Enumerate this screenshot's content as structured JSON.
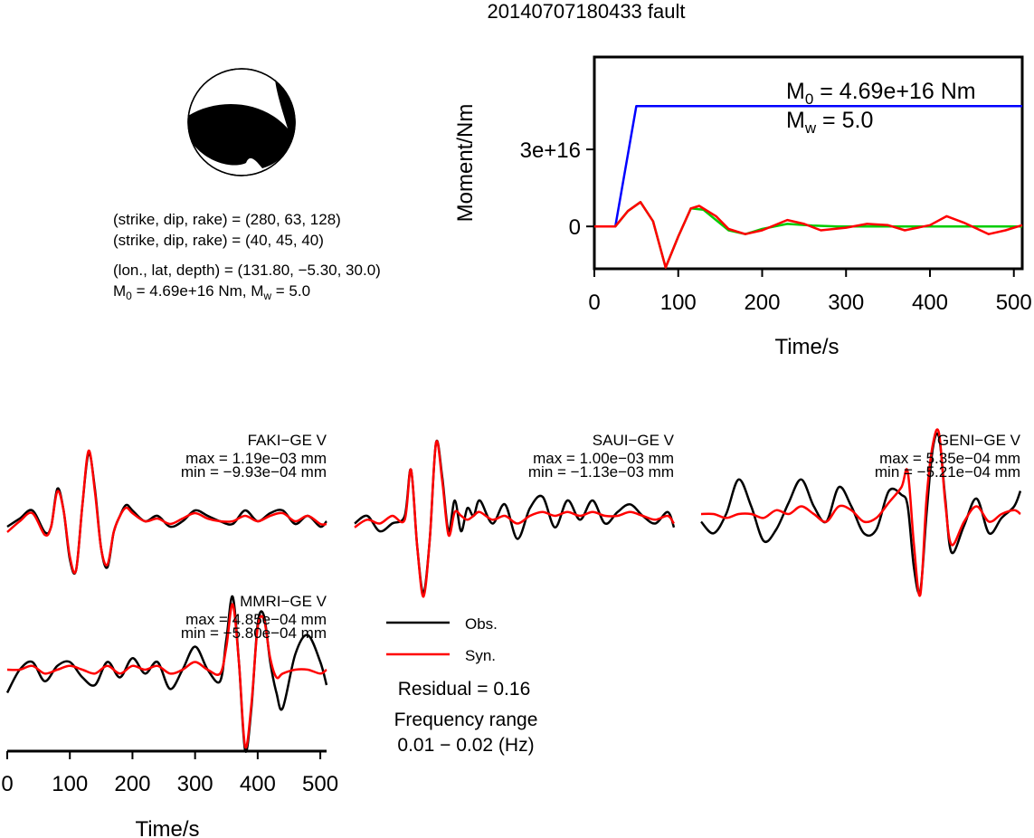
{
  "title": "20140707180433 fault",
  "mechanism": {
    "line1": "(strike, dip, rake) = (280, 63, 128)",
    "line2": "(strike, dip, rake) = (40, 45, 40)",
    "line3": "(lon., lat, depth) = (131.80, −5.30, 30.0)",
    "m0_prefix": "M",
    "m0_sub": "0",
    "m0_value": " = 4.69e+16 Nm, M",
    "mw_sub": "w",
    "mw_value": " = 5.0"
  },
  "chart_data": [
    {
      "type": "line",
      "id": "moment-rate",
      "xlabel": "Time/s",
      "ylabel": "Moment/Nm",
      "xlim": [
        0,
        510
      ],
      "ylim": [
        -1.65e+16,
        6.6e+16
      ],
      "xticks": [
        0,
        100,
        200,
        300,
        400,
        500
      ],
      "xtick_labels": [
        "0",
        "100",
        "200",
        "300",
        "400",
        "500"
      ],
      "yticks": [
        0,
        3e+16
      ],
      "ytick_labels": [
        "0",
        "3e+16"
      ],
      "annotation": {
        "m0_prefix": "M",
        "m0_sub": "0",
        "m0_value": " = 4.69e+16 Nm",
        "mw_prefix": "M",
        "mw_sub": "w",
        "mw_value": " = 5.0"
      },
      "series": [
        {
          "color": "#0000ff",
          "x": [
            0,
            25,
            50,
            510
          ],
          "y": [
            0,
            0,
            4.69e+16,
            4.69e+16
          ]
        },
        {
          "color": "#00cc00",
          "x": [
            0,
            25,
            40,
            55,
            70,
            85,
            100,
            115,
            130,
            145,
            160,
            180,
            200,
            230,
            260,
            290,
            320,
            360,
            400,
            450,
            510
          ],
          "y": [
            0,
            0,
            6000000000000000.0,
            9500000000000000.0,
            2000000000000000.0,
            -1.6e+16,
            -4000000000000000.0,
            7000000000000000.0,
            6500000000000000.0,
            2500000000000000.0,
            -1500000000000000.0,
            -3000000000000000.0,
            -1000000000000000.0,
            1000000000000000.0,
            300000000000000.0,
            0.0,
            0,
            0,
            0,
            0,
            0
          ]
        },
        {
          "color": "#ff0000",
          "x": [
            0,
            25,
            40,
            55,
            70,
            85,
            100,
            115,
            125,
            145,
            160,
            180,
            200,
            230,
            250,
            270,
            300,
            325,
            350,
            370,
            400,
            420,
            440,
            470,
            490,
            510
          ],
          "y": [
            0,
            0,
            6000000000000000.0,
            9500000000000000.0,
            2000000000000000.0,
            -1.6e+16,
            -4000000000000000.0,
            7000000000000000.0,
            8000000000000000.0,
            4000000000000000.0,
            -1000000000000000.0,
            -3000000000000000.0,
            -1500000000000000.0,
            2500000000000000.0,
            1000000000000000.0,
            -1500000000000000.0,
            -500000000000000.0,
            1000000000000000.0,
            500000000000000.0,
            -1500000000000000.0,
            500000000000000.0,
            4000000000000000.0,
            1500000000000000.0,
            -3000000000000000.0,
            -1500000000000000.0,
            500000000000000.0
          ]
        }
      ]
    },
    {
      "type": "line",
      "id": "waveforms",
      "xlabel": "Time/s",
      "xlim": [
        0,
        510
      ],
      "xticks": [
        0,
        100,
        200,
        300,
        400,
        500
      ],
      "xtick_labels": [
        "0",
        "100",
        "200",
        "300",
        "400",
        "500"
      ],
      "legend": {
        "obs": "Obs.",
        "syn": "Syn.",
        "obs_color": "#000000",
        "syn_color": "#ff0000"
      },
      "residual": "Residual = 0.16",
      "freq_label": "Frequency range",
      "freq_value": "0.01 − 0.02 (Hz)",
      "stations": [
        {
          "name": "FAKI−GE V",
          "max": "max = 1.19e−03 mm",
          "min": "min = −9.93e−04 mm",
          "x": [
            0,
            20,
            40,
            60,
            70,
            80,
            90,
            100,
            110,
            120,
            130,
            140,
            150,
            160,
            170,
            180,
            190,
            200,
            220,
            240,
            260,
            280,
            300,
            320,
            340,
            360,
            380,
            400,
            420,
            440,
            460,
            480,
            500,
            510
          ],
          "obs": [
            -0.2,
            -0.05,
            0.1,
            -0.3,
            -0.2,
            0.5,
            0.1,
            -0.8,
            -1.0,
            0.2,
            1.15,
            0.5,
            -0.6,
            -0.95,
            -0.3,
            0.0,
            0.2,
            0.1,
            -0.1,
            0.0,
            -0.2,
            -0.1,
            0.1,
            0.0,
            -0.1,
            -0.15,
            0.1,
            -0.1,
            0.05,
            0.1,
            -0.15,
            0.0,
            -0.2,
            -0.1
          ],
          "syn": [
            -0.3,
            -0.1,
            0.05,
            -0.35,
            -0.2,
            0.45,
            0.1,
            -0.75,
            -1.0,
            0.2,
            1.2,
            0.45,
            -0.6,
            -0.9,
            -0.3,
            0.0,
            0.15,
            0.05,
            -0.1,
            -0.05,
            -0.15,
            -0.05,
            0.05,
            -0.05,
            -0.1,
            -0.1,
            0.0,
            -0.1,
            0.0,
            0.05,
            -0.1,
            0.0,
            -0.15,
            -0.15
          ]
        },
        {
          "name": "SAUI−GE V",
          "max": "max = 1.00e−03 mm",
          "min": "min = −1.13e−03 mm",
          "x": [
            0,
            20,
            40,
            60,
            80,
            90,
            100,
            110,
            120,
            130,
            140,
            150,
            160,
            170,
            180,
            190,
            200,
            220,
            240,
            260,
            280,
            300,
            320,
            340,
            360,
            380,
            400,
            420,
            440,
            460,
            480,
            500,
            510
          ],
          "obs": [
            -0.1,
            0.0,
            -0.2,
            -0.1,
            0.0,
            0.6,
            -0.4,
            -1.0,
            -0.3,
            0.95,
            0.5,
            -0.2,
            0.2,
            -0.2,
            0.1,
            0.0,
            0.2,
            -0.1,
            0.15,
            -0.3,
            0.1,
            0.25,
            -0.15,
            0.2,
            -0.05,
            0.2,
            -0.1,
            0.05,
            0.15,
            0.0,
            -0.1,
            0.05,
            -0.15
          ],
          "syn": [
            -0.15,
            -0.05,
            -0.1,
            0.0,
            -0.05,
            0.6,
            -0.4,
            -1.05,
            -0.3,
            0.95,
            0.45,
            -0.25,
            0.05,
            0.0,
            -0.05,
            0.0,
            0.05,
            -0.05,
            0.0,
            -0.1,
            0.0,
            0.05,
            0.0,
            0.05,
            0.0,
            0.05,
            0.0,
            0.0,
            0.05,
            0.0,
            -0.05,
            0.0,
            -0.1
          ]
        },
        {
          "name": "GENI−GE V",
          "max": "max = 5.35e−04 mm",
          "min": "min = −5.21e−04 mm",
          "x": [
            0,
            20,
            40,
            60,
            80,
            100,
            120,
            140,
            160,
            180,
            200,
            220,
            240,
            260,
            280,
            300,
            320,
            330,
            340,
            350,
            360,
            370,
            380,
            390,
            400,
            420,
            440,
            460,
            480,
            500,
            510
          ],
          "obs": [
            -0.1,
            -0.25,
            0.0,
            0.45,
            0.1,
            -0.35,
            -0.2,
            0.15,
            0.45,
            0.1,
            -0.1,
            0.35,
            0.1,
            -0.25,
            -0.2,
            0.3,
            0.25,
            0.1,
            -0.7,
            -1.0,
            0.0,
            0.85,
            1.0,
            0.2,
            -0.5,
            -0.15,
            0.2,
            -0.25,
            -0.05,
            0.1,
            0.3
          ],
          "syn": [
            0.0,
            0.0,
            -0.05,
            0.0,
            0.0,
            -0.05,
            0.05,
            0.0,
            0.1,
            0.0,
            -0.1,
            0.1,
            0.05,
            -0.1,
            -0.05,
            0.15,
            0.35,
            0.55,
            -0.4,
            -1.05,
            0.2,
            0.9,
            1.05,
            0.15,
            -0.4,
            -0.1,
            0.1,
            -0.1,
            0.0,
            0.05,
            0.0
          ]
        },
        {
          "name": "MMRI−GE V",
          "max": "max = 4.85e−04 mm",
          "min": "min = −5.80e−04 mm",
          "x": [
            0,
            20,
            40,
            60,
            80,
            100,
            120,
            140,
            160,
            180,
            200,
            220,
            240,
            260,
            280,
            300,
            320,
            340,
            350,
            360,
            370,
            380,
            390,
            400,
            410,
            420,
            430,
            440,
            460,
            480,
            500,
            510
          ],
          "obs": [
            -0.3,
            0.0,
            0.1,
            -0.15,
            0.05,
            0.1,
            -0.1,
            -0.2,
            0.1,
            -0.1,
            0.15,
            -0.05,
            0.1,
            -0.25,
            0.0,
            0.3,
            0.0,
            -0.15,
            0.4,
            0.95,
            0.1,
            -1.05,
            -0.5,
            0.6,
            0.7,
            0.1,
            -0.3,
            -0.5,
            0.2,
            0.45,
            0.1,
            -0.2
          ],
          "syn": [
            0.0,
            0.0,
            0.05,
            -0.05,
            0.0,
            0.05,
            0.0,
            -0.05,
            0.05,
            -0.05,
            0.05,
            0.0,
            0.05,
            -0.05,
            0.0,
            0.1,
            0.0,
            -0.05,
            0.3,
            0.85,
            0.1,
            -1.0,
            -0.45,
            0.55,
            0.65,
            0.15,
            -0.1,
            -0.05,
            0.0,
            0.0,
            -0.05,
            0.0
          ]
        }
      ]
    }
  ]
}
